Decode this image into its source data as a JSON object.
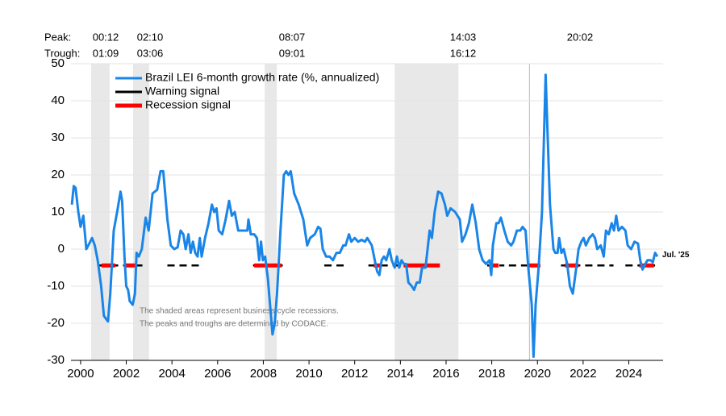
{
  "chart_data": {
    "type": "line",
    "series": [
      {
        "name": "Brazil LEI 6-month growth rate (%, annualized)",
        "color": "#1a85e8",
        "values": [
          12,
          17,
          16.5,
          10,
          6,
          9,
          0,
          1.5,
          3,
          1,
          -3,
          -10,
          -18,
          -19.5,
          -12,
          5,
          10,
          15.5,
          13,
          -2,
          -10,
          -11,
          -14,
          -15,
          -12,
          -1,
          -2,
          0,
          8.5,
          5,
          15,
          16,
          21,
          21,
          8,
          1,
          0,
          0.5,
          5,
          4,
          0,
          4,
          -1,
          2,
          -1,
          -2,
          3,
          -2,
          3,
          7,
          12,
          10,
          11,
          5,
          4,
          8,
          13,
          9,
          10,
          5,
          5,
          5,
          8,
          4,
          4,
          3,
          -3,
          2,
          -3,
          -2,
          -8,
          -23,
          -20,
          -12,
          5,
          20,
          21,
          20,
          21,
          15,
          12,
          8,
          1,
          3,
          4,
          6,
          5.5,
          0,
          -2,
          -2,
          -3,
          -1,
          -1,
          1,
          1,
          4,
          2,
          3,
          2,
          2.5,
          2,
          3,
          1,
          -3,
          -6,
          -7,
          -3,
          -2,
          -3,
          0,
          -3,
          -5,
          -2,
          -5,
          -3,
          -4,
          -4,
          -9,
          -10,
          -11,
          -9,
          -9,
          -5,
          -5,
          5,
          3,
          10,
          15.5,
          15,
          12,
          9,
          11,
          10,
          8,
          2,
          4,
          7,
          12,
          7,
          0,
          -3,
          -4,
          -3,
          -7,
          1,
          7,
          7,
          8.5,
          5,
          2,
          1,
          2,
          5,
          5,
          6,
          5,
          -5,
          -15,
          -29,
          -15,
          -5,
          10,
          47,
          30,
          12,
          0,
          -1,
          -1,
          3,
          -1,
          0,
          -4,
          -10,
          -12,
          -6,
          0,
          2,
          3,
          1,
          3,
          4,
          3,
          0,
          1,
          -2,
          5,
          4,
          7,
          5,
          9,
          5,
          6,
          5,
          1,
          0,
          2,
          1.5,
          -3,
          -5.5,
          -4,
          -3,
          -3,
          -3.5,
          -1,
          -2
        ]
      }
    ],
    "x": [
      1999.62,
      1999.7,
      1999.78,
      1999.9,
      2000.0,
      2000.12,
      2000.25,
      2000.38,
      2000.5,
      2000.62,
      2000.75,
      2000.9,
      2001.02,
      2001.2,
      2001.3,
      2001.45,
      2001.6,
      2001.75,
      2001.82,
      2001.92,
      2002.0,
      2002.08,
      2002.15,
      2002.28,
      2002.38,
      2002.45,
      2002.55,
      2002.68,
      2002.85,
      2002.98,
      2003.15,
      2003.35,
      2003.5,
      2003.62,
      2003.8,
      2003.95,
      2004.1,
      2004.25,
      2004.38,
      2004.5,
      2004.6,
      2004.72,
      2004.82,
      2004.92,
      2005.02,
      2005.12,
      2005.22,
      2005.3,
      2005.45,
      2005.6,
      2005.75,
      2005.85,
      2005.95,
      2006.05,
      2006.2,
      2006.35,
      2006.5,
      2006.62,
      2006.75,
      2006.9,
      2007.1,
      2007.3,
      2007.35,
      2007.45,
      2007.6,
      2007.72,
      2007.82,
      2007.9,
      2007.98,
      2008.08,
      2008.2,
      2008.4,
      2008.5,
      2008.6,
      2008.75,
      2008.9,
      2009.0,
      2009.1,
      2009.2,
      2009.35,
      2009.55,
      2009.75,
      2009.92,
      2010.05,
      2010.25,
      2010.4,
      2010.5,
      2010.6,
      2010.75,
      2010.9,
      2011.05,
      2011.2,
      2011.35,
      2011.5,
      2011.6,
      2011.75,
      2011.85,
      2012.0,
      2012.15,
      2012.3,
      2012.45,
      2012.55,
      2012.75,
      2012.88,
      2012.98,
      2013.08,
      2013.18,
      2013.28,
      2013.38,
      2013.52,
      2013.62,
      2013.75,
      2013.85,
      2013.95,
      2014.05,
      2014.15,
      2014.25,
      2014.35,
      2014.5,
      2014.6,
      2014.72,
      2014.85,
      2014.95,
      2015.1,
      2015.28,
      2015.38,
      2015.5,
      2015.65,
      2015.8,
      2015.95,
      2016.05,
      2016.2,
      2016.4,
      2016.6,
      2016.7,
      2016.85,
      2017.0,
      2017.15,
      2017.3,
      2017.45,
      2017.6,
      2017.75,
      2017.9,
      2017.98,
      2018.05,
      2018.2,
      2018.3,
      2018.4,
      2018.55,
      2018.7,
      2018.85,
      2018.95,
      2019.1,
      2019.25,
      2019.35,
      2019.48,
      2019.6,
      2019.75,
      2019.83,
      2019.92,
      2020.05,
      2020.2,
      2020.36,
      2020.45,
      2020.55,
      2020.7,
      2020.78,
      2020.88,
      2020.95,
      2021.05,
      2021.15,
      2021.3,
      2021.42,
      2021.55,
      2021.68,
      2021.8,
      2021.92,
      2022.02,
      2022.12,
      2022.27,
      2022.42,
      2022.52,
      2022.62,
      2022.77,
      2022.9,
      2023.0,
      2023.12,
      2023.25,
      2023.35,
      2023.45,
      2023.55,
      2023.7,
      2023.85,
      2023.95,
      2024.1,
      2024.25,
      2024.4,
      2024.5,
      2024.6,
      2024.72,
      2024.82,
      2024.95,
      2025.05,
      2025.15,
      2025.25
    ],
    "warning_signal": {
      "name": "Warning signal",
      "color": "#000000",
      "level": -4.4,
      "spans": [
        [
          2000.8,
          2002.76
        ],
        [
          2003.8,
          2005.3
        ],
        [
          2007.55,
          2008.85
        ],
        [
          2010.67,
          2011.73
        ],
        [
          2012.6,
          2015.73
        ],
        [
          2017.8,
          2018.55
        ],
        [
          2018.75,
          2020.13
        ],
        [
          2021.03,
          2023.33
        ],
        [
          2023.85,
          2025.15
        ]
      ]
    },
    "recession_signal": {
      "name": "Recession signal",
      "color": "#ff0000",
      "level": -4.4,
      "spans": [
        [
          2000.92,
          2001.52
        ],
        [
          2001.94,
          2002.47
        ],
        [
          2007.6,
          2008.8
        ],
        [
          2012.83,
          2013.15
        ],
        [
          2014.14,
          2015.73
        ],
        [
          2017.92,
          2018.3
        ],
        [
          2019.6,
          2020.13
        ],
        [
          2021.2,
          2021.8
        ],
        [
          2024.46,
          2025.1
        ]
      ]
    },
    "peak_label": "Peak:",
    "trough_label": "Trough:",
    "recessions": [
      {
        "peak": "00:12",
        "trough": "01:09",
        "start": 2000.46,
        "end": 2001.27
      },
      {
        "peak": "02:10",
        "trough": "03:06",
        "start": 2002.3,
        "end": 2003.0
      },
      {
        "peak": "08:07",
        "trough": "09:01",
        "start": 2008.06,
        "end": 2008.59
      },
      {
        "peak": "14:03",
        "trough": "16:12",
        "start": 2013.75,
        "end": 2016.54
      },
      {
        "peak": "20:02",
        "start": 2019.65
      }
    ],
    "annotations": [
      "The shaded areas represent business cycle recessions.",
      "The peaks and troughs are determined by CODACE."
    ],
    "end_label": "Jul. '25",
    "xlim": [
      1999.58,
      2025.5
    ],
    "xticks": [
      2000,
      2002,
      2004,
      2006,
      2008,
      2010,
      2012,
      2014,
      2016,
      2018,
      2020,
      2022,
      2024
    ],
    "ylim": [
      -30,
      50
    ],
    "yticks": [
      -30,
      -20,
      -10,
      0,
      10,
      20,
      30,
      40,
      50
    ],
    "grid": true
  }
}
